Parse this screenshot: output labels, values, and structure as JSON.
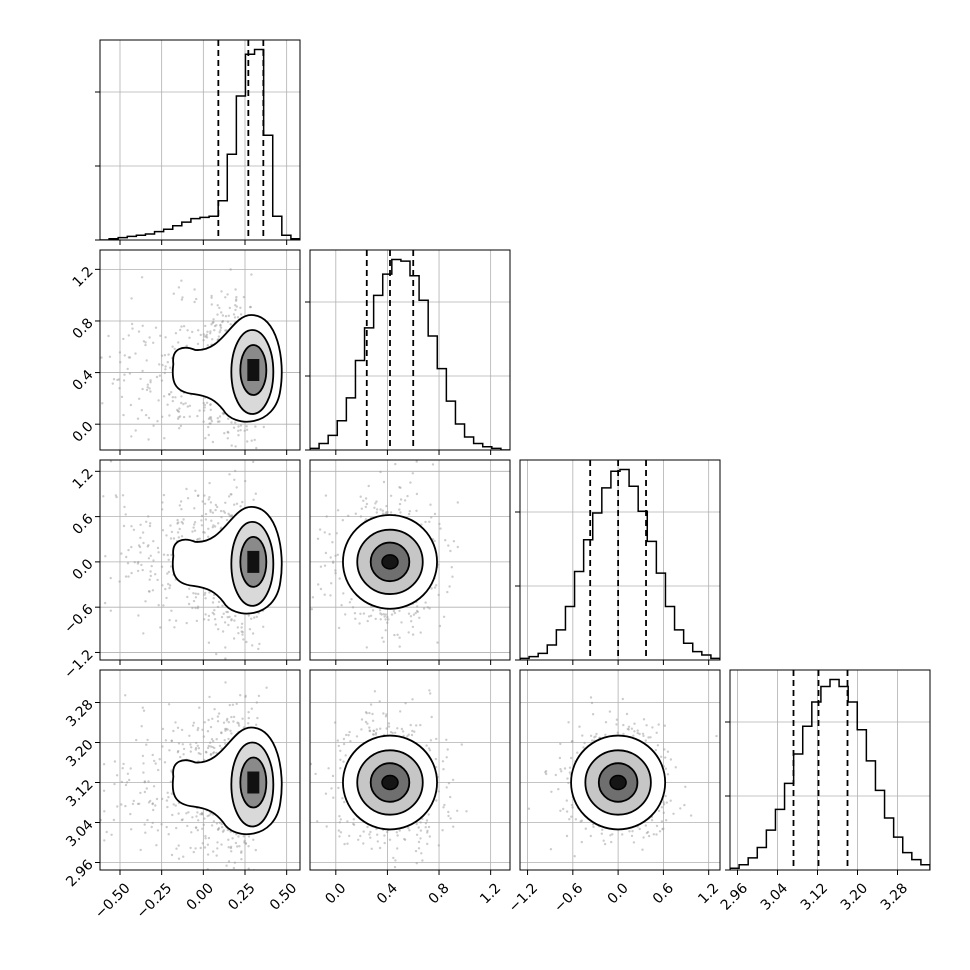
{
  "colors": {
    "line": "#000000",
    "grid": "#b0b0b0",
    "scatter": "#9a9a9a",
    "background": "#ffffff"
  },
  "chart_data": {
    "type": "corner",
    "grid": true,
    "parameters": [
      {
        "range": [
          -0.62,
          0.58
        ],
        "ticks": [
          -0.5,
          -0.25,
          0.0,
          0.25,
          0.5
        ],
        "tick_labels": [
          "−0.50",
          "−0.25",
          "0.00",
          "0.25",
          "0.50"
        ],
        "quantiles": [
          0.09,
          0.27,
          0.36
        ],
        "hist": [
          0,
          1,
          2,
          3,
          4,
          5,
          7,
          9,
          12,
          15,
          18,
          19,
          20,
          33,
          72,
          121,
          156,
          160,
          88,
          20,
          4,
          1
        ]
      },
      {
        "range": [
          -0.2,
          1.35
        ],
        "ticks": [
          0.0,
          0.4,
          0.8,
          1.2
        ],
        "tick_labels": [
          "0.0",
          "0.4",
          "0.8",
          "1.2"
        ],
        "quantiles": [
          0.24,
          0.42,
          0.6
        ],
        "hist": [
          1,
          4,
          9,
          18,
          32,
          55,
          75,
          95,
          108,
          117,
          116,
          107,
          92,
          70,
          50,
          30,
          16,
          8,
          4,
          2,
          1,
          0
        ]
      },
      {
        "range": [
          -1.3,
          1.35
        ],
        "ticks": [
          -1.2,
          -0.6,
          0.0,
          0.6,
          1.2
        ],
        "tick_labels": [
          "−1.2",
          "−0.6",
          "0.0",
          "0.6",
          "1.2"
        ],
        "quantiles": [
          -0.37,
          0.0,
          0.37
        ],
        "hist": [
          1,
          2,
          4,
          9,
          18,
          32,
          53,
          72,
          88,
          103,
          113,
          114,
          104,
          89,
          71,
          52,
          32,
          18,
          10,
          5,
          3,
          1
        ]
      },
      {
        "range": [
          2.945,
          3.345
        ],
        "ticks": [
          2.96,
          3.04,
          3.12,
          3.2,
          3.28
        ],
        "tick_labels": [
          "2.96",
          "3.04",
          "3.12",
          "3.20",
          "3.28"
        ],
        "quantiles": [
          3.072,
          3.122,
          3.18
        ],
        "hist": [
          1,
          3,
          7,
          13,
          23,
          35,
          50,
          67,
          83,
          97,
          106,
          110,
          106,
          97,
          81,
          63,
          46,
          30,
          19,
          10,
          6,
          3
        ]
      }
    ],
    "pairs": [
      {
        "row": 1,
        "col": 0,
        "x_peak": 0.3,
        "y_peak": 0.42
      },
      {
        "row": 2,
        "col": 0,
        "x_peak": 0.3,
        "y_peak": 0.0
      },
      {
        "row": 2,
        "col": 1,
        "x_peak": 0.42,
        "y_peak": 0.0
      },
      {
        "row": 3,
        "col": 0,
        "x_peak": 0.3,
        "y_peak": 3.12
      },
      {
        "row": 3,
        "col": 1,
        "x_peak": 0.42,
        "y_peak": 3.12
      },
      {
        "row": 3,
        "col": 2,
        "x_peak": 0.0,
        "y_peak": 3.12
      }
    ]
  }
}
